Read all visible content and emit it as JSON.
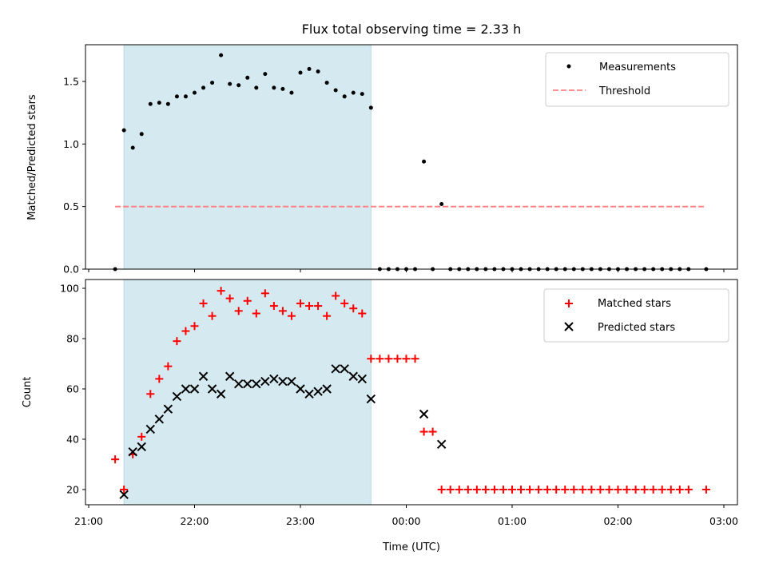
{
  "title": "Flux total observing time = 2.33 h",
  "xlabel": "Time (UTC)",
  "x_ticks": [
    "21:00",
    "22:00",
    "23:00",
    "00:00",
    "01:00",
    "02:00",
    "03:00"
  ],
  "shaded_region": {
    "start": "21:20",
    "end": "23:40",
    "color": "#d4eaf0"
  },
  "chart_data": [
    {
      "type": "scatter",
      "ylabel": "Matched/Predicted stars",
      "ylim": [
        0,
        1.8
      ],
      "y_ticks": [
        "0.0",
        "0.5",
        "1.0",
        "1.5"
      ],
      "legend": {
        "placement": "top-right"
      },
      "series": [
        {
          "name": "Measurements",
          "color": "#000000",
          "marker": "dot",
          "points": [
            [
              "21:15",
              0.0
            ],
            [
              "21:20",
              1.11
            ],
            [
              "21:25",
              0.97
            ],
            [
              "21:30",
              1.08
            ],
            [
              "21:35",
              1.32
            ],
            [
              "21:40",
              1.33
            ],
            [
              "21:45",
              1.32
            ],
            [
              "21:50",
              1.38
            ],
            [
              "21:55",
              1.38
            ],
            [
              "22:00",
              1.41
            ],
            [
              "22:05",
              1.45
            ],
            [
              "22:10",
              1.49
            ],
            [
              "22:15",
              1.71
            ],
            [
              "22:20",
              1.48
            ],
            [
              "22:25",
              1.47
            ],
            [
              "22:30",
              1.53
            ],
            [
              "22:35",
              1.45
            ],
            [
              "22:40",
              1.56
            ],
            [
              "22:45",
              1.45
            ],
            [
              "22:50",
              1.44
            ],
            [
              "22:55",
              1.41
            ],
            [
              "23:00",
              1.57
            ],
            [
              "23:05",
              1.6
            ],
            [
              "23:10",
              1.58
            ],
            [
              "23:15",
              1.49
            ],
            [
              "23:20",
              1.43
            ],
            [
              "23:25",
              1.38
            ],
            [
              "23:30",
              1.41
            ],
            [
              "23:35",
              1.4
            ],
            [
              "23:40",
              1.29
            ],
            [
              "23:45",
              0.0
            ],
            [
              "23:50",
              0.0
            ],
            [
              "23:55",
              0.0
            ],
            [
              "00:00",
              0.0
            ],
            [
              "00:05",
              0.0
            ],
            [
              "00:10",
              0.86
            ],
            [
              "00:15",
              0.0
            ],
            [
              "00:20",
              0.52
            ],
            [
              "00:25",
              0.0
            ],
            [
              "00:30",
              0.0
            ],
            [
              "00:35",
              0.0
            ],
            [
              "00:40",
              0.0
            ],
            [
              "00:45",
              0.0
            ],
            [
              "00:50",
              0.0
            ],
            [
              "00:55",
              0.0
            ],
            [
              "01:00",
              0.0
            ],
            [
              "01:05",
              0.0
            ],
            [
              "01:10",
              0.0
            ],
            [
              "01:15",
              0.0
            ],
            [
              "01:20",
              0.0
            ],
            [
              "01:25",
              0.0
            ],
            [
              "01:30",
              0.0
            ],
            [
              "01:35",
              0.0
            ],
            [
              "01:40",
              0.0
            ],
            [
              "01:45",
              0.0
            ],
            [
              "01:50",
              0.0
            ],
            [
              "01:55",
              0.0
            ],
            [
              "02:00",
              0.0
            ],
            [
              "02:05",
              0.0
            ],
            [
              "02:10",
              0.0
            ],
            [
              "02:15",
              0.0
            ],
            [
              "02:20",
              0.0
            ],
            [
              "02:25",
              0.0
            ],
            [
              "02:30",
              0.0
            ],
            [
              "02:35",
              0.0
            ],
            [
              "02:40",
              0.0
            ],
            [
              "02:50",
              0.0
            ]
          ]
        },
        {
          "name": "Threshold",
          "color": "#ff7f7f",
          "style": "dashed",
          "x_range": [
            "21:15",
            "02:50"
          ],
          "value": 0.5
        }
      ]
    },
    {
      "type": "scatter",
      "ylabel": "Count",
      "ylim": [
        14,
        103
      ],
      "y_ticks": [
        "20",
        "40",
        "60",
        "80",
        "100"
      ],
      "legend": {
        "placement": "top-right"
      },
      "series": [
        {
          "name": "Matched stars",
          "color": "#ff0000",
          "marker": "plus",
          "points": [
            [
              "21:15",
              32
            ],
            [
              "21:20",
              20
            ],
            [
              "21:25",
              34
            ],
            [
              "21:30",
              41
            ],
            [
              "21:35",
              58
            ],
            [
              "21:40",
              64
            ],
            [
              "21:45",
              69
            ],
            [
              "21:50",
              79
            ],
            [
              "21:55",
              83
            ],
            [
              "22:00",
              85
            ],
            [
              "22:05",
              94
            ],
            [
              "22:10",
              89
            ],
            [
              "22:15",
              99
            ],
            [
              "22:20",
              96
            ],
            [
              "22:25",
              91
            ],
            [
              "22:30",
              95
            ],
            [
              "22:35",
              90
            ],
            [
              "22:40",
              98
            ],
            [
              "22:45",
              93
            ],
            [
              "22:50",
              91
            ],
            [
              "22:55",
              89
            ],
            [
              "23:00",
              94
            ],
            [
              "23:05",
              93
            ],
            [
              "23:10",
              93
            ],
            [
              "23:15",
              89
            ],
            [
              "23:20",
              97
            ],
            [
              "23:25",
              94
            ],
            [
              "23:30",
              92
            ],
            [
              "23:35",
              90
            ],
            [
              "23:40",
              72
            ],
            [
              "23:45",
              72
            ],
            [
              "23:50",
              72
            ],
            [
              "23:55",
              72
            ],
            [
              "00:00",
              72
            ],
            [
              "00:05",
              72
            ],
            [
              "00:10",
              43
            ],
            [
              "00:15",
              43
            ],
            [
              "00:20",
              20
            ],
            [
              "00:25",
              20
            ],
            [
              "00:30",
              20
            ],
            [
              "00:35",
              20
            ],
            [
              "00:40",
              20
            ],
            [
              "00:45",
              20
            ],
            [
              "00:50",
              20
            ],
            [
              "00:55",
              20
            ],
            [
              "01:00",
              20
            ],
            [
              "01:05",
              20
            ],
            [
              "01:10",
              20
            ],
            [
              "01:15",
              20
            ],
            [
              "01:20",
              20
            ],
            [
              "01:25",
              20
            ],
            [
              "01:30",
              20
            ],
            [
              "01:35",
              20
            ],
            [
              "01:40",
              20
            ],
            [
              "01:45",
              20
            ],
            [
              "01:50",
              20
            ],
            [
              "01:55",
              20
            ],
            [
              "02:00",
              20
            ],
            [
              "02:05",
              20
            ],
            [
              "02:10",
              20
            ],
            [
              "02:15",
              20
            ],
            [
              "02:20",
              20
            ],
            [
              "02:25",
              20
            ],
            [
              "02:30",
              20
            ],
            [
              "02:35",
              20
            ],
            [
              "02:40",
              20
            ],
            [
              "02:50",
              20
            ]
          ]
        },
        {
          "name": "Predicted stars",
          "color": "#000000",
          "marker": "x",
          "points": [
            [
              "21:20",
              18
            ],
            [
              "21:25",
              35
            ],
            [
              "21:30",
              37
            ],
            [
              "21:35",
              44
            ],
            [
              "21:40",
              48
            ],
            [
              "21:45",
              52
            ],
            [
              "21:50",
              57
            ],
            [
              "21:55",
              60
            ],
            [
              "22:00",
              60
            ],
            [
              "22:05",
              65
            ],
            [
              "22:10",
              60
            ],
            [
              "22:15",
              58
            ],
            [
              "22:20",
              65
            ],
            [
              "22:25",
              62
            ],
            [
              "22:30",
              62
            ],
            [
              "22:35",
              62
            ],
            [
              "22:40",
              63
            ],
            [
              "22:45",
              64
            ],
            [
              "22:50",
              63
            ],
            [
              "22:55",
              63
            ],
            [
              "23:00",
              60
            ],
            [
              "23:05",
              58
            ],
            [
              "23:10",
              59
            ],
            [
              "23:15",
              60
            ],
            [
              "23:20",
              68
            ],
            [
              "23:25",
              68
            ],
            [
              "23:30",
              65
            ],
            [
              "23:35",
              64
            ],
            [
              "23:40",
              56
            ],
            [
              "00:10",
              50
            ],
            [
              "00:20",
              38
            ]
          ]
        }
      ]
    }
  ]
}
